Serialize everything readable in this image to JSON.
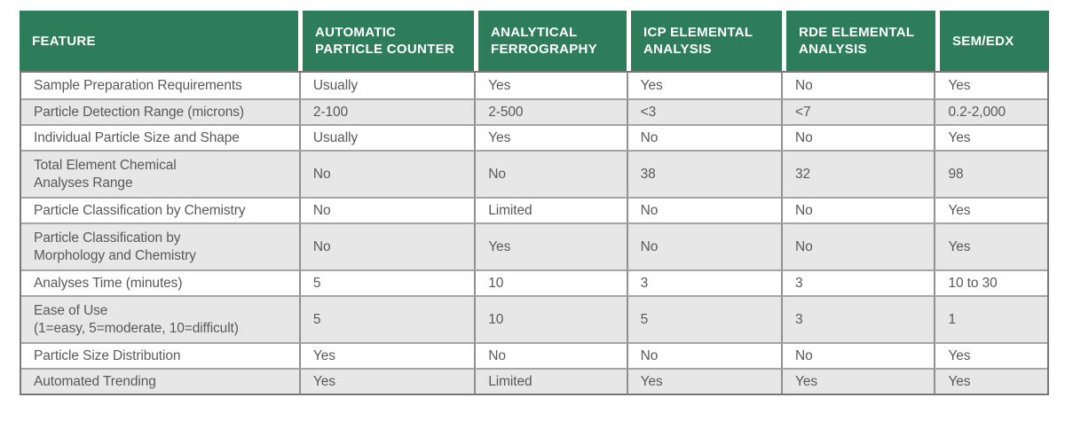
{
  "table": {
    "columns": [
      {
        "label": "FEATURE"
      },
      {
        "label": "AUTOMATIC\nPARTICLE COUNTER"
      },
      {
        "label": "ANALYTICAL\nFERROGRAPHY"
      },
      {
        "label": "ICP ELEMENTAL\nANALYSIS"
      },
      {
        "label": "RDE ELEMENTAL\nANALYSIS"
      },
      {
        "label": "SEM/EDX"
      }
    ],
    "rows": [
      {
        "feature": "Sample Preparation Requirements",
        "values": [
          "Usually",
          "Yes",
          "Yes",
          "No",
          "Yes"
        ]
      },
      {
        "feature": "Particle Detection Range (microns)",
        "values": [
          "2-100",
          "2-500",
          "<3",
          "<7",
          "0.2-2,000"
        ]
      },
      {
        "feature": "Individual Particle Size and Shape",
        "values": [
          "Usually",
          "Yes",
          "No",
          "No",
          "Yes"
        ]
      },
      {
        "feature": "Total Element Chemical\nAnalyses Range",
        "values": [
          "No",
          "No",
          "38",
          "32",
          "98"
        ]
      },
      {
        "feature": "Particle Classification by Chemistry",
        "values": [
          "No",
          "Limited",
          "No",
          "No",
          "Yes"
        ]
      },
      {
        "feature": "Particle Classification by\nMorphology and Chemistry",
        "values": [
          "No",
          "Yes",
          "No",
          "No",
          "Yes"
        ]
      },
      {
        "feature": "Analyses Time (minutes)",
        "values": [
          "5",
          "10",
          "3",
          "3",
          "10 to 30"
        ]
      },
      {
        "feature": "Ease of Use\n(1=easy, 5=moderate, 10=difficult)",
        "values": [
          "5",
          "10",
          "5",
          "3",
          "1"
        ]
      },
      {
        "feature": "Particle Size Distribution",
        "values": [
          "Yes",
          "No",
          "No",
          "No",
          "Yes"
        ]
      },
      {
        "feature": "Automated Trending",
        "values": [
          "Yes",
          "Limited",
          "Yes",
          "Yes",
          "Yes"
        ]
      }
    ]
  },
  "colors": {
    "header_bg": "#2e7d5a",
    "header_text": "#ffffff",
    "row_alt_bg": "#e8e7e7",
    "body_text": "#58595b",
    "outer_border": "#77787a",
    "h_border": "#a5a5a6",
    "v_border": "#8f9092"
  }
}
